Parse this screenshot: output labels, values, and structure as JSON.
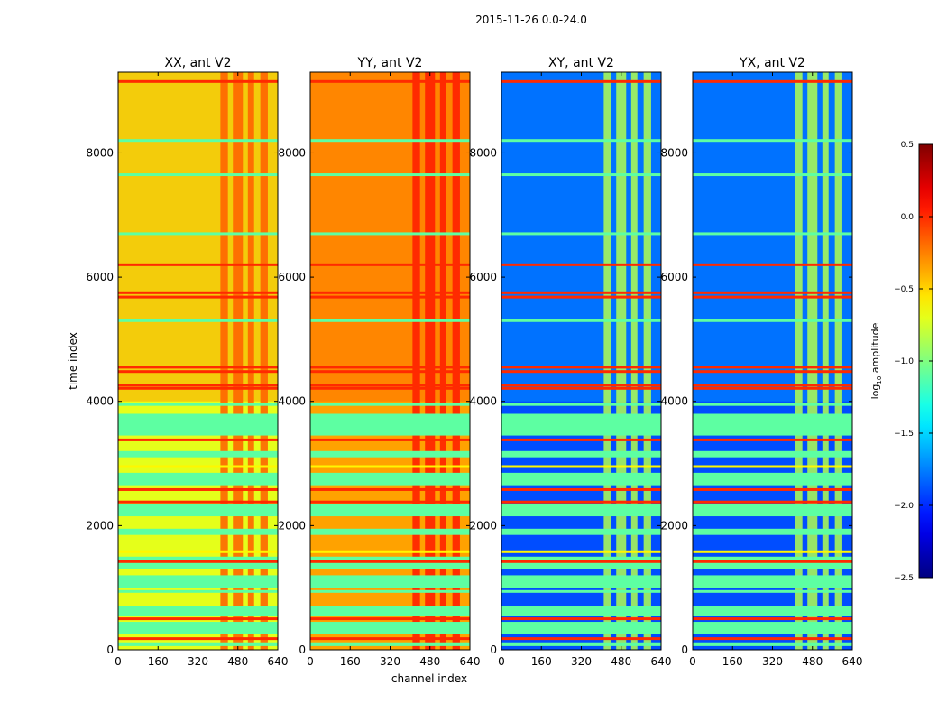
{
  "chart_data": {
    "type": "heatmap",
    "title": "2015-11-26 0.0-24.0",
    "xlabel": "channel index",
    "ylabel": "time index",
    "xlim": [
      0,
      640
    ],
    "ylim": [
      0,
      9300
    ],
    "xticks": [
      0,
      160,
      320,
      480,
      640
    ],
    "yticks": [
      0,
      2000,
      4000,
      6000,
      8000
    ],
    "panels": [
      {
        "title": "XX, ant V2",
        "base_level": -0.7,
        "strong_level": -0.35,
        "burst_level": -0.15,
        "burst_channels": [
          [
            410,
            440
          ],
          [
            460,
            500
          ],
          [
            520,
            545
          ],
          [
            570,
            600
          ]
        ]
      },
      {
        "title": "YY, ant V2",
        "base_level": -0.35,
        "strong_level": -0.2,
        "burst_level": 0.05,
        "burst_channels": [
          [
            410,
            440
          ],
          [
            460,
            500
          ],
          [
            520,
            545
          ],
          [
            570,
            600
          ]
        ]
      },
      {
        "title": "XY, ant V2",
        "base_level": -1.9,
        "strong_level": -1.7,
        "burst_level": -0.85,
        "burst_channels": [
          [
            410,
            440
          ],
          [
            460,
            500
          ],
          [
            520,
            545
          ],
          [
            570,
            600
          ]
        ]
      },
      {
        "title": "YX, ant V2",
        "base_level": -1.9,
        "strong_level": -1.7,
        "burst_level": -0.85,
        "burst_channels": [
          [
            410,
            440
          ],
          [
            460,
            500
          ],
          [
            520,
            545
          ],
          [
            570,
            600
          ]
        ]
      }
    ],
    "flag_level": -1.1,
    "flag_bands": [
      [
        3450,
        3800
      ],
      [
        3100,
        3200
      ],
      [
        2650,
        2850
      ],
      [
        2150,
        2350
      ],
      [
        1850,
        1950
      ],
      [
        1300,
        1500
      ],
      [
        1000,
        1200
      ],
      [
        550,
        700
      ],
      [
        250,
        450
      ],
      [
        60,
        120
      ]
    ],
    "rfi_lines": [
      {
        "t": 9150,
        "level": 0.0
      },
      {
        "t": 8200,
        "level": -1.1
      },
      {
        "t": 7650,
        "level": -1.1
      },
      {
        "t": 6700,
        "level": -1.1
      },
      {
        "t": 6200,
        "level": 0.0
      },
      {
        "t": 5750,
        "level": 0.0
      },
      {
        "t": 5680,
        "level": 0.0
      },
      {
        "t": 5300,
        "level": -1.1
      },
      {
        "t": 4550,
        "level": 0.0
      },
      {
        "t": 4480,
        "level": 0.0
      },
      {
        "t": 4260,
        "level": 0.0
      },
      {
        "t": 4210,
        "level": 0.0
      },
      {
        "t": 3950,
        "level": -1.1
      },
      {
        "t": 3380,
        "level": 0.0
      },
      {
        "t": 2950,
        "level": -0.6
      },
      {
        "t": 2580,
        "level": 0.0
      },
      {
        "t": 2380,
        "level": 0.0
      },
      {
        "t": 1580,
        "level": -0.6
      },
      {
        "t": 1420,
        "level": 0.0
      },
      {
        "t": 940,
        "level": -1.1
      },
      {
        "t": 500,
        "level": 0.0
      },
      {
        "t": 180,
        "level": 0.0
      }
    ],
    "colorbar": {
      "label_prefix": "log",
      "label_sub": "10",
      "label_suffix": " amplitude",
      "colormap": "jet",
      "vmin": -2.5,
      "vmax": 0.5,
      "ticks": [
        0.5,
        0.0,
        -0.5,
        -1.0,
        -1.5,
        -2.0,
        -2.5
      ],
      "tick_labels": [
        "0.5",
        "0.0",
        "−0.5",
        "−1.0",
        "−1.5",
        "−2.0",
        "−2.5"
      ]
    }
  }
}
